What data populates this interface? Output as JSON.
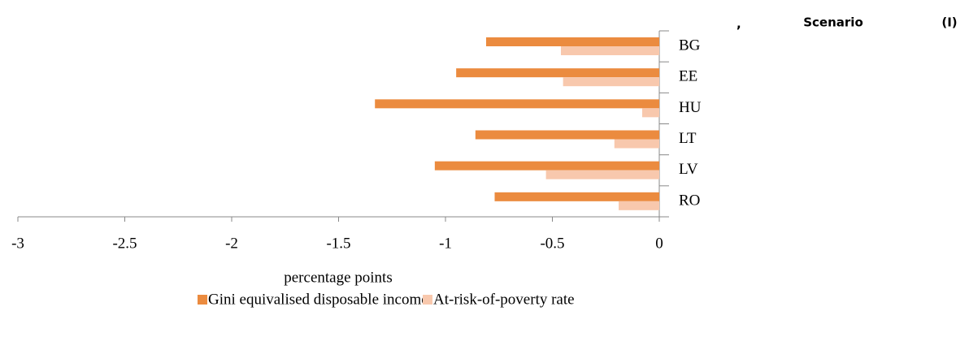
{
  "chart_data": {
    "type": "barh",
    "annotations": [
      ",",
      "Scenario",
      "(I)"
    ],
    "categories": [
      "BG",
      "EE",
      "HU",
      "LT",
      "LV",
      "RO"
    ],
    "series": [
      {
        "name": "Gini equivalised disposable income",
        "color": "#eb8b3f",
        "values": [
          -0.81,
          -0.95,
          -1.33,
          -0.86,
          -1.05,
          -0.77
        ]
      },
      {
        "name": "At-risk-of-poverty rate",
        "color": "#f8c8ad",
        "values": [
          -0.46,
          -0.45,
          -0.08,
          -0.21,
          -0.53,
          -0.19
        ]
      }
    ],
    "xlim": [
      -3,
      0
    ],
    "xticks": [
      -3,
      -2.5,
      -2,
      -1.5,
      -1,
      -0.5,
      0
    ],
    "xlabel": "percentage points",
    "legend": "bottom"
  }
}
